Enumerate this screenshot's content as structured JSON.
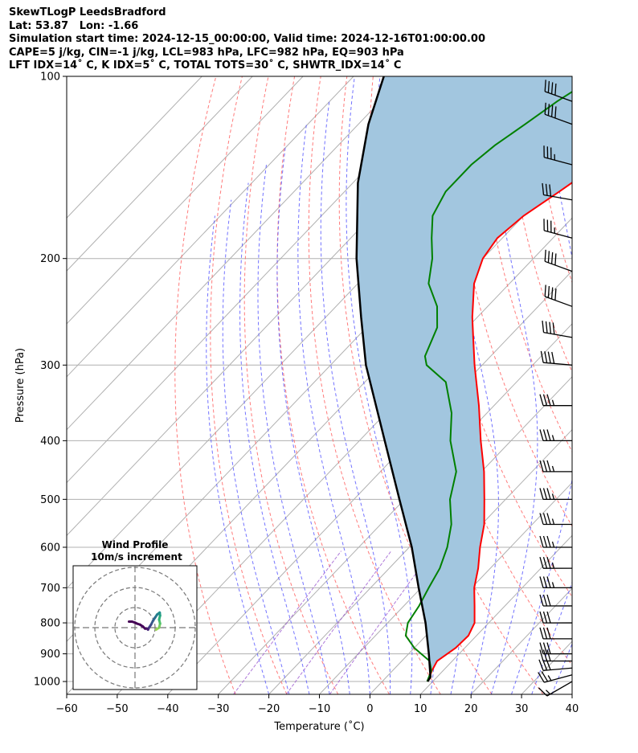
{
  "header": {
    "line1": "SkewTLogP LeedsBradford",
    "line2": "Lat: 53.87   Lon: -1.66",
    "line3": "Simulation start time: 2024-12-15_00:00:00, Valid time: 2024-12-16T01:00:00.00",
    "line4": "CAPE=5 j/kg, CIN=-1 j/kg, LCL=983 hPa, LFC=982 hPa, EQ=903 hPa",
    "line5": "LFT IDX=14˚ C, K IDX=5˚ C, TOTAL TOTS=30˚ C, SHWTR_IDX=14˚ C"
  },
  "chart_data": {
    "type": "line",
    "subtype": "skew-t log-p",
    "xlabel": "Temperature (˚C)",
    "ylabel": "Pressure (hPa)",
    "xlim": [
      -60,
      40
    ],
    "ylim": [
      1050,
      100
    ],
    "y_scale": "log",
    "x_ticks": [
      -60,
      -50,
      -40,
      -30,
      -20,
      -10,
      0,
      10,
      20,
      30,
      40
    ],
    "x_tick_labels": [
      "−60",
      "−50",
      "−40",
      "−30",
      "−20",
      "−10",
      "0",
      "10",
      "20",
      "30",
      "40"
    ],
    "y_ticks": [
      1000,
      900,
      800,
      700,
      600,
      500,
      400,
      300,
      200,
      100
    ],
    "y_tick_labels": [
      "1000",
      "900",
      "800",
      "700",
      "600",
      "500",
      "400",
      "300",
      "200",
      "100"
    ],
    "grid": true,
    "colors": {
      "temperature": "#ff0000",
      "dewpoint": "#008000",
      "parcel": "#000000",
      "cape_fill": "#a2c6df",
      "isotherm": "#b0b0b0",
      "dry_adiabat": "#ff6464",
      "moist_adiabat": "#5a5aff",
      "mixing_ratio": "#9b59d0"
    },
    "series": [
      {
        "key": "temperature",
        "values": [
          {
            "p": 1000,
            "t": 9.0
          },
          {
            "p": 960,
            "t": 7.8
          },
          {
            "p": 925,
            "t": 7.0
          },
          {
            "p": 880,
            "t": 8.2
          },
          {
            "p": 840,
            "t": 8.4
          },
          {
            "p": 800,
            "t": 7.2
          },
          {
            "p": 750,
            "t": 4.0
          },
          {
            "p": 700,
            "t": 0.5
          },
          {
            "p": 650,
            "t": -2.4
          },
          {
            "p": 600,
            "t": -6.0
          },
          {
            "p": 550,
            "t": -9.5
          },
          {
            "p": 500,
            "t": -14.2
          },
          {
            "p": 450,
            "t": -19.5
          },
          {
            "p": 400,
            "t": -26.0
          },
          {
            "p": 350,
            "t": -33.0
          },
          {
            "p": 300,
            "t": -41.5
          },
          {
            "p": 270,
            "t": -47.0
          },
          {
            "p": 250,
            "t": -51.0
          },
          {
            "p": 220,
            "t": -57.0
          },
          {
            "p": 200,
            "t": -60.0
          },
          {
            "p": 185,
            "t": -61.0
          },
          {
            "p": 170,
            "t": -60.0
          },
          {
            "p": 155,
            "t": -57.5
          },
          {
            "p": 140,
            "t": -55.0
          },
          {
            "p": 130,
            "t": -52.0
          },
          {
            "p": 120,
            "t": -49.0
          },
          {
            "p": 110,
            "t": -45.0
          },
          {
            "p": 100,
            "t": -41.0
          }
        ]
      },
      {
        "key": "dewpoint",
        "values": [
          {
            "p": 1000,
            "t": 8.9
          },
          {
            "p": 960,
            "t": 7.7
          },
          {
            "p": 925,
            "t": 5.5
          },
          {
            "p": 880,
            "t": 0.0
          },
          {
            "p": 840,
            "t": -4.0
          },
          {
            "p": 800,
            "t": -6.0
          },
          {
            "p": 750,
            "t": -7.0
          },
          {
            "p": 700,
            "t": -8.5
          },
          {
            "p": 650,
            "t": -10.0
          },
          {
            "p": 600,
            "t": -12.5
          },
          {
            "p": 550,
            "t": -16.0
          },
          {
            "p": 500,
            "t": -21.0
          },
          {
            "p": 450,
            "t": -25.0
          },
          {
            "p": 400,
            "t": -32.0
          },
          {
            "p": 360,
            "t": -37.0
          },
          {
            "p": 320,
            "t": -44.0
          },
          {
            "p": 300,
            "t": -51.0
          },
          {
            "p": 290,
            "t": -53.0
          },
          {
            "p": 260,
            "t": -56.0
          },
          {
            "p": 240,
            "t": -60.0
          },
          {
            "p": 220,
            "t": -66.0
          },
          {
            "p": 200,
            "t": -70.0
          },
          {
            "p": 185,
            "t": -74.0
          },
          {
            "p": 170,
            "t": -78.0
          },
          {
            "p": 155,
            "t": -80.0
          },
          {
            "p": 140,
            "t": -80.0
          },
          {
            "p": 130,
            "t": -79.0
          },
          {
            "p": 120,
            "t": -77.0
          },
          {
            "p": 110,
            "t": -75.0
          },
          {
            "p": 100,
            "t": -72.0
          }
        ]
      },
      {
        "key": "parcel",
        "values": [
          {
            "p": 1000,
            "t": 9.0
          },
          {
            "p": 983,
            "t": 8.7
          },
          {
            "p": 900,
            "t": 4.0
          },
          {
            "p": 800,
            "t": -2.5
          },
          {
            "p": 700,
            "t": -10.5
          },
          {
            "p": 600,
            "t": -19.5
          },
          {
            "p": 500,
            "t": -31.0
          },
          {
            "p": 400,
            "t": -45.0
          },
          {
            "p": 300,
            "t": -63.0
          },
          {
            "p": 250,
            "t": -73.0
          },
          {
            "p": 200,
            "t": -85.0
          },
          {
            "p": 150,
            "t": -99.0
          },
          {
            "p": 120,
            "t": -108.0
          },
          {
            "p": 100,
            "t": -114.0
          }
        ]
      }
    ],
    "wind_barbs": [
      {
        "p": 1000,
        "speed_kt": 15,
        "dir_deg": 240
      },
      {
        "p": 975,
        "speed_kt": 25,
        "dir_deg": 255
      },
      {
        "p": 950,
        "speed_kt": 30,
        "dir_deg": 265
      },
      {
        "p": 925,
        "speed_kt": 30,
        "dir_deg": 270
      },
      {
        "p": 900,
        "speed_kt": 30,
        "dir_deg": 270
      },
      {
        "p": 850,
        "speed_kt": 30,
        "dir_deg": 270
      },
      {
        "p": 800,
        "speed_kt": 30,
        "dir_deg": 270
      },
      {
        "p": 750,
        "speed_kt": 30,
        "dir_deg": 270
      },
      {
        "p": 700,
        "speed_kt": 35,
        "dir_deg": 270
      },
      {
        "p": 650,
        "speed_kt": 35,
        "dir_deg": 270
      },
      {
        "p": 600,
        "speed_kt": 35,
        "dir_deg": 270
      },
      {
        "p": 550,
        "speed_kt": 35,
        "dir_deg": 270
      },
      {
        "p": 500,
        "speed_kt": 35,
        "dir_deg": 270
      },
      {
        "p": 450,
        "speed_kt": 35,
        "dir_deg": 270
      },
      {
        "p": 400,
        "speed_kt": 35,
        "dir_deg": 270
      },
      {
        "p": 350,
        "speed_kt": 35,
        "dir_deg": 270
      },
      {
        "p": 300,
        "speed_kt": 40,
        "dir_deg": 275
      },
      {
        "p": 270,
        "speed_kt": 40,
        "dir_deg": 280
      },
      {
        "p": 240,
        "speed_kt": 40,
        "dir_deg": 290
      },
      {
        "p": 210,
        "speed_kt": 40,
        "dir_deg": 290
      },
      {
        "p": 185,
        "speed_kt": 35,
        "dir_deg": 285
      },
      {
        "p": 160,
        "speed_kt": 30,
        "dir_deg": 280
      },
      {
        "p": 140,
        "speed_kt": 35,
        "dir_deg": 285
      },
      {
        "p": 120,
        "speed_kt": 40,
        "dir_deg": 290
      },
      {
        "p": 110,
        "speed_kt": 40,
        "dir_deg": 290
      }
    ],
    "hodograph": {
      "title": "Wind Profile",
      "subtitle": "10m/s increment",
      "ring_spacing_ms": 10,
      "rings": 3,
      "points": [
        {
          "u": 10.5,
          "v": -1.0
        },
        {
          "u": 12.0,
          "v": 0.0
        },
        {
          "u": 12.5,
          "v": 2.0
        },
        {
          "u": 12.0,
          "v": 4.0
        },
        {
          "u": 12.5,
          "v": 6.0
        },
        {
          "u": 12.3,
          "v": 7.5
        },
        {
          "u": 11.0,
          "v": 6.5
        },
        {
          "u": 10.0,
          "v": 5.0
        },
        {
          "u": 9.0,
          "v": 3.5
        },
        {
          "u": 8.0,
          "v": 1.5
        },
        {
          "u": 7.0,
          "v": 0.0
        },
        {
          "u": 6.5,
          "v": -1.0
        },
        {
          "u": 6.0,
          "v": -0.5
        },
        {
          "u": 5.0,
          "v": -0.5
        },
        {
          "u": 4.0,
          "v": 0.5
        },
        {
          "u": 2.5,
          "v": 1.5
        },
        {
          "u": 1.0,
          "v": 2.0
        },
        {
          "u": 0.0,
          "v": 2.5
        },
        {
          "u": -1.5,
          "v": 3.0
        },
        {
          "u": -3.0,
          "v": 3.0
        }
      ]
    }
  }
}
